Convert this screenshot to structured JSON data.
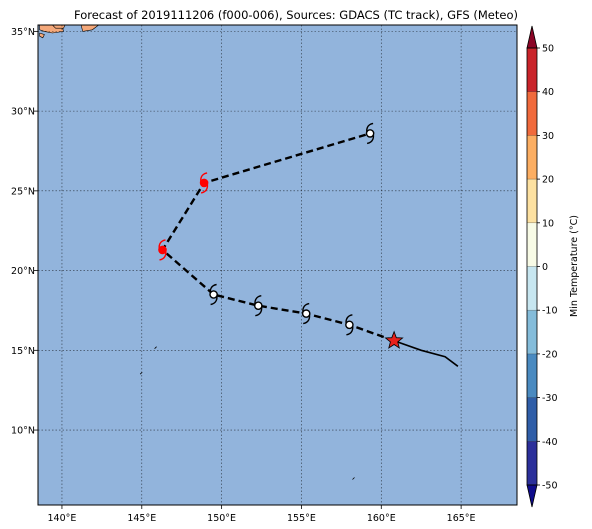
{
  "title": "Forecast of 2019111206 (f000-006), Sources: GDACS (TC track), GFS (Meteo)",
  "colors": {
    "ocean": "#92b4dc",
    "land": "#f4a87a",
    "track_past": "#000000",
    "current_marker": "#e8201c",
    "symbol_white": "#ffffff",
    "symbol_red": "#ff0000"
  },
  "map": {
    "lon_range": [
      138.5,
      168.5
    ],
    "lat_range": [
      5.3,
      35.4
    ],
    "lon_ticks": [
      {
        "value": 140,
        "label": "140°E"
      },
      {
        "value": 145,
        "label": "145°E"
      },
      {
        "value": 150,
        "label": "150°E"
      },
      {
        "value": 155,
        "label": "155°E"
      },
      {
        "value": 160,
        "label": "160°E"
      },
      {
        "value": 165,
        "label": "165°E"
      }
    ],
    "lat_ticks": [
      {
        "value": 10,
        "label": "10°N"
      },
      {
        "value": 15,
        "label": "15°N"
      },
      {
        "value": 20,
        "label": "20°N"
      },
      {
        "value": 25,
        "label": "25°N"
      },
      {
        "value": 30,
        "label": "30°N"
      },
      {
        "value": 35,
        "label": "35°N"
      }
    ],
    "gridlines": true
  },
  "track": {
    "observed": [
      [
        160.8,
        15.6
      ],
      [
        162.5,
        15.0
      ],
      [
        164.0,
        14.6
      ],
      [
        164.8,
        14.0
      ]
    ],
    "forecast": [
      [
        160.8,
        15.6
      ],
      [
        158.0,
        16.6
      ],
      [
        155.3,
        17.3
      ],
      [
        152.3,
        17.8
      ],
      [
        149.5,
        18.5
      ],
      [
        146.3,
        21.3
      ],
      [
        148.9,
        25.5
      ],
      [
        159.3,
        28.6
      ]
    ],
    "current_position": [
      160.8,
      15.6
    ],
    "symbols": [
      {
        "lon": 158.0,
        "lat": 16.6,
        "color": "white"
      },
      {
        "lon": 155.3,
        "lat": 17.3,
        "color": "white"
      },
      {
        "lon": 152.3,
        "lat": 17.8,
        "color": "white"
      },
      {
        "lon": 149.5,
        "lat": 18.5,
        "color": "white"
      },
      {
        "lon": 146.3,
        "lat": 21.3,
        "color": "red"
      },
      {
        "lon": 148.9,
        "lat": 25.5,
        "color": "red"
      },
      {
        "lon": 159.3,
        "lat": 28.6,
        "color": "white"
      }
    ]
  },
  "colorbar": {
    "label": "Min Temperature (°C)",
    "levels": [
      -55,
      -50,
      -40,
      -30,
      -20,
      -10,
      0,
      10,
      20,
      30,
      40,
      50,
      55
    ],
    "tick_labels": [
      "-50",
      "-40",
      "-30",
      "-20",
      "-10",
      "0",
      "10",
      "20",
      "30",
      "40",
      "50"
    ],
    "tick_values": [
      -50,
      -40,
      -30,
      -20,
      -10,
      0,
      10,
      20,
      30,
      40,
      50
    ],
    "colors": [
      "#0f0c8c",
      "#2b2f9a",
      "#2f5ea8",
      "#4a8ac0",
      "#84bcda",
      "#c7e6f0",
      "#f8fbe6",
      "#fde1a1",
      "#fcae62",
      "#f06a3c",
      "#c9242a",
      "#8a0526"
    ]
  }
}
